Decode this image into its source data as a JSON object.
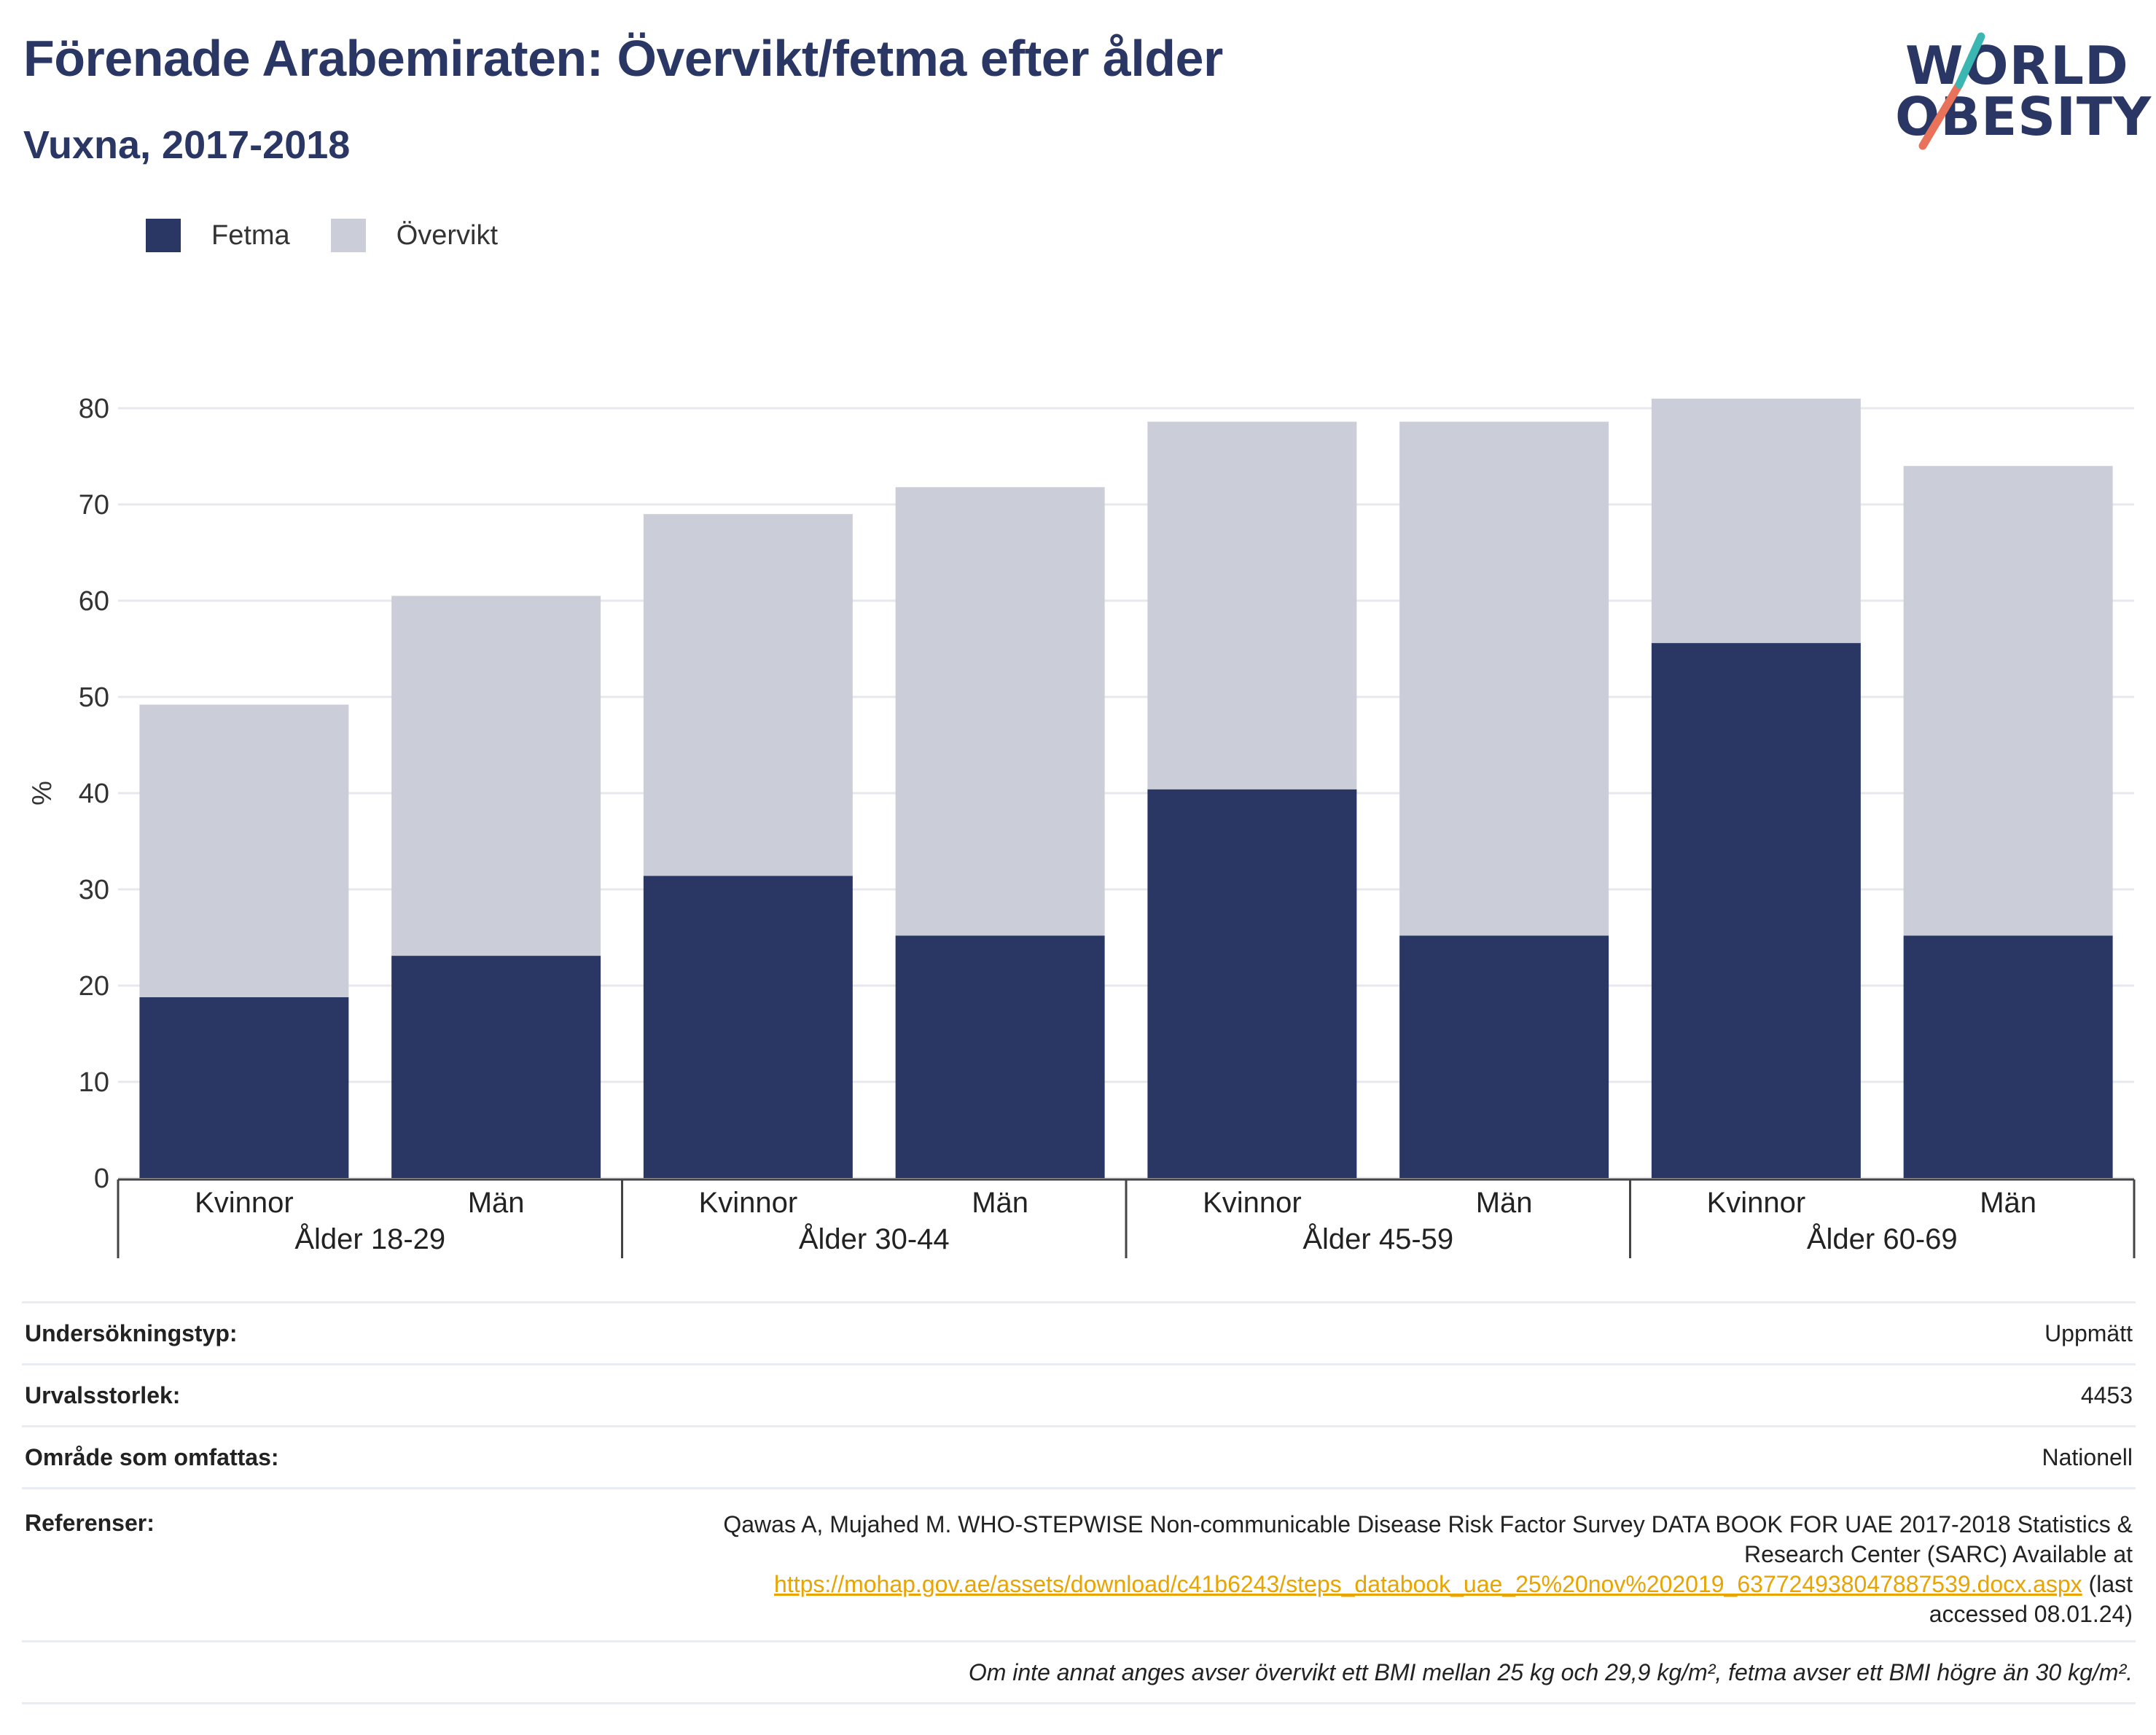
{
  "header": {
    "title": "Förenade Arabemiraten: Övervikt/fetma efter ålder",
    "subtitle": "Vuxna, 2017-2018"
  },
  "logo": {
    "line1": "WORLD",
    "line2": "OBESITY",
    "accent_color": "#e8735a",
    "accent_color_2": "#3bb7b3"
  },
  "legend": [
    {
      "label": "Fetma",
      "color": "#2a3663"
    },
    {
      "label": "Övervikt",
      "color": "#cbcdd9"
    }
  ],
  "chart_data": {
    "type": "bar",
    "stacked": true,
    "ylabel": "%",
    "ylim": [
      0,
      80
    ],
    "yticks": [
      0,
      10,
      20,
      30,
      40,
      50,
      60,
      70,
      80
    ],
    "grid": true,
    "categories": [
      "Kvinnor",
      "Män",
      "Kvinnor",
      "Män",
      "Kvinnor",
      "Män",
      "Kvinnor",
      "Män"
    ],
    "groups": [
      "Ålder 18-29",
      "Ålder 30-44",
      "Ålder 45-59",
      "Ålder 60-69"
    ],
    "series": [
      {
        "name": "Fetma",
        "color": "#2a3663",
        "values": [
          18.8,
          23.1,
          31.4,
          25.2,
          40.4,
          25.2,
          55.6,
          25.2
        ]
      },
      {
        "name": "Övervikt",
        "color": "#cbcdd9",
        "values": [
          30.4,
          37.4,
          37.6,
          46.6,
          38.2,
          53.4,
          25.4,
          48.8
        ]
      }
    ]
  },
  "meta": {
    "survey_type_label": "Undersökningstyp:",
    "survey_type_value": "Uppmätt",
    "sample_size_label": "Urvalsstorlek:",
    "sample_size_value": "4453",
    "area_label": "Område som omfattas:",
    "area_value": "Nationell",
    "references_label": "Referenser:",
    "reference_text_1": "Qawas A, Mujahed M. WHO-STEPWISE Non-communicable Disease Risk Factor Survey DATA BOOK FOR UAE 2017-2018 Statistics &",
    "reference_text_2": "Research Center (SARC) Available at",
    "reference_link": "https://mohap.gov.ae/assets/download/c41b6243/steps_databook_uae_25%20nov%202019_637724938047887539.docx.aspx",
    "reference_text_3": "(last",
    "reference_text_4": "accessed 08.01.24)",
    "note": "Om inte annat anges avser övervikt ett BMI mellan 25 kg och 29,9 kg/m², fetma avser ett BMI högre än 30 kg/m²."
  }
}
